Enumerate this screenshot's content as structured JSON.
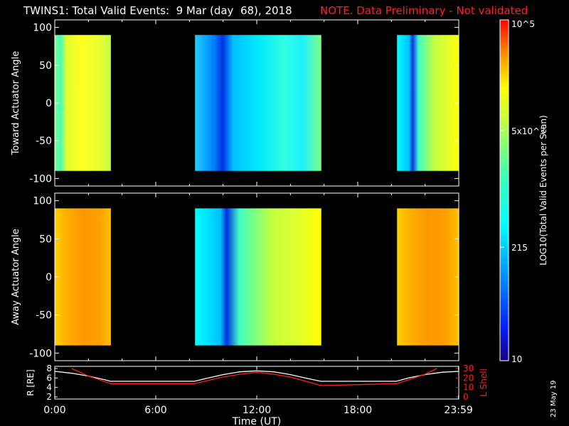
{
  "header": {
    "title": "TWINS1: Total Valid Events:  9 Mar (day  68), 2018",
    "note": "NOTE. Data Preliminary - Not validated"
  },
  "stamp": "23 May 19",
  "colorbar": {
    "label": "LOG10(Total Valid Events per Scan)",
    "ticks": [
      {
        "value": 10,
        "label": "10"
      },
      {
        "value": 215,
        "label": "215"
      },
      {
        "value": 5000,
        "label": "5x10^3"
      },
      {
        "value": 100000,
        "label": "10^5"
      }
    ],
    "range": [
      10,
      100000
    ],
    "scale": "log"
  },
  "colors": {
    "note": "#ff2020",
    "r_line": "#ffffff",
    "lshell_line": "#ff2020",
    "axis": "#ffffff",
    "background": "#000000"
  },
  "chart_data": [
    {
      "type": "heatmap",
      "ylabel": "Toward Actuator Angle",
      "xlim": [
        0,
        24
      ],
      "ylim": [
        -110,
        110
      ],
      "y_ticks": [
        -100,
        -50,
        0,
        50,
        100
      ],
      "data_y_range": [
        -90,
        90
      ],
      "segments": [
        {
          "start": "0:00",
          "end": "3:20",
          "level": "yellow-green"
        },
        {
          "start": "8:20",
          "end": "15:50",
          "level": "cyan-blue"
        },
        {
          "start": "20:20",
          "end": "23:59",
          "level": "cyan-green"
        }
      ]
    },
    {
      "type": "heatmap",
      "ylabel": "Away Actuator Angle",
      "xlim": [
        0,
        24
      ],
      "ylim": [
        -110,
        110
      ],
      "y_ticks": [
        -100,
        -50,
        0,
        50,
        100
      ],
      "data_y_range": [
        -90,
        90
      ],
      "segments": [
        {
          "start": "0:00",
          "end": "3:20",
          "level": "orange"
        },
        {
          "start": "8:20",
          "end": "15:50",
          "level": "cyan-green"
        },
        {
          "start": "20:20",
          "end": "23:59",
          "level": "orange"
        }
      ]
    },
    {
      "type": "line",
      "xlabel": "Time (UT)",
      "x_ticks": [
        "0:00",
        "6:00",
        "12:00",
        "18:00",
        "23:59"
      ],
      "xlim": [
        0,
        24
      ],
      "ylabel_left": "R [RE]",
      "ylim_left": [
        2,
        8
      ],
      "y_ticks_left": [
        2,
        4,
        6,
        8
      ],
      "ylabel_right": "L Shell",
      "ylim_right": [
        0,
        30
      ],
      "y_ticks_right": [
        0,
        10,
        20,
        30
      ],
      "series": [
        {
          "name": "R [RE]",
          "axis": "left",
          "x": [
            0,
            1,
            2,
            3,
            3.3,
            8.3,
            9,
            10,
            11,
            12,
            13,
            14,
            15,
            15.8,
            20.3,
            21,
            22,
            23,
            24
          ],
          "y": [
            7.4,
            7.0,
            6.4,
            5.6,
            5.3,
            5.3,
            5.9,
            6.7,
            7.3,
            7.5,
            7.3,
            6.7,
            5.9,
            5.3,
            5.3,
            6.0,
            6.7,
            7.2,
            7.4
          ]
        },
        {
          "name": "L Shell",
          "axis": "right",
          "x": [
            1.0,
            2.0,
            3.0,
            3.3,
            8.3,
            9,
            10,
            11,
            12,
            13,
            14,
            15,
            15.8,
            20.3,
            21,
            22,
            22.7
          ],
          "y": [
            30,
            22,
            16,
            14,
            14,
            17,
            21,
            24,
            26,
            24,
            21,
            16,
            12,
            14,
            18,
            24,
            30
          ]
        }
      ]
    }
  ]
}
